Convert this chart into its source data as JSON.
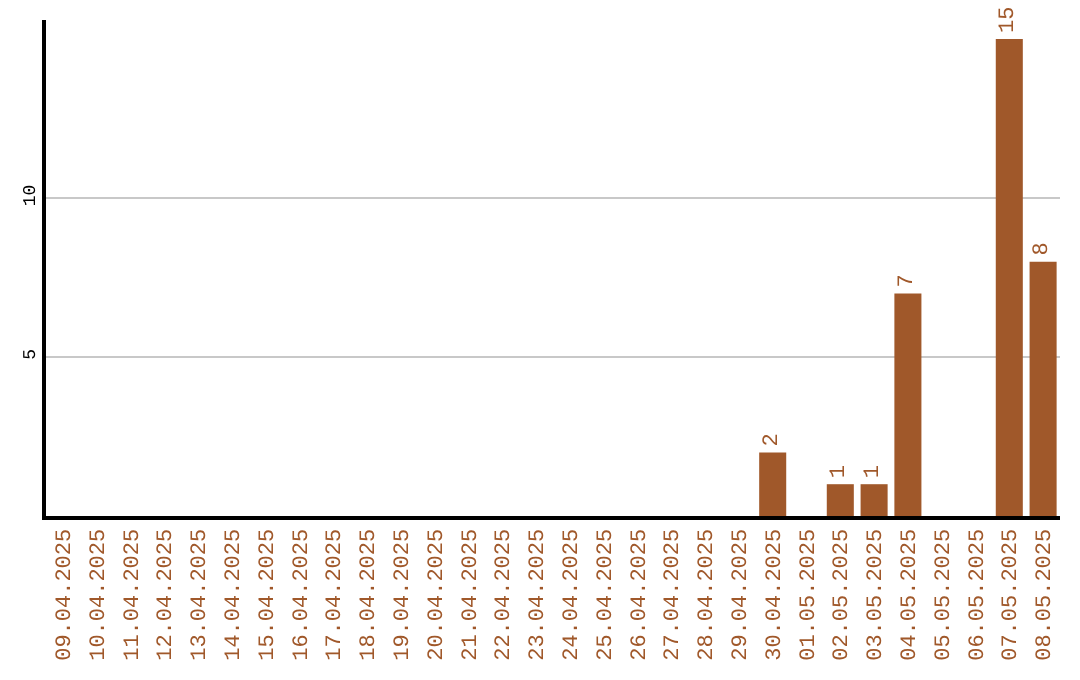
{
  "chart_data": {
    "type": "bar",
    "categories": [
      "09.04.2025",
      "10.04.2025",
      "11.04.2025",
      "12.04.2025",
      "13.04.2025",
      "14.04.2025",
      "15.04.2025",
      "16.04.2025",
      "17.04.2025",
      "18.04.2025",
      "19.04.2025",
      "20.04.2025",
      "21.04.2025",
      "22.04.2025",
      "23.04.2025",
      "24.04.2025",
      "25.04.2025",
      "26.04.2025",
      "27.04.2025",
      "28.04.2025",
      "29.04.2025",
      "30.04.2025",
      "01.05.2025",
      "02.05.2025",
      "03.05.2025",
      "04.05.2025",
      "05.05.2025",
      "06.05.2025",
      "07.05.2025",
      "08.05.2025"
    ],
    "values": [
      0,
      0,
      0,
      0,
      0,
      0,
      0,
      0,
      0,
      0,
      0,
      0,
      0,
      0,
      0,
      0,
      0,
      0,
      0,
      0,
      0,
      2,
      0,
      1,
      1,
      7,
      0,
      0,
      15,
      8
    ],
    "value_labels": [
      null,
      null,
      null,
      null,
      null,
      null,
      null,
      null,
      null,
      null,
      null,
      null,
      null,
      null,
      null,
      null,
      null,
      null,
      null,
      null,
      null,
      "2",
      null,
      "1",
      "1",
      "7",
      null,
      null,
      "15",
      "8"
    ],
    "color": "#a0582a",
    "ylim": [
      0,
      15.6
    ],
    "yticks": [
      5,
      10
    ],
    "grid": "y"
  }
}
